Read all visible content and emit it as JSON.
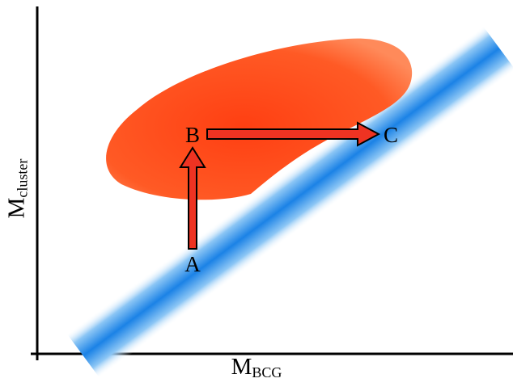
{
  "axes": {
    "x": {
      "main": "M",
      "sub": "BCG"
    },
    "y": {
      "main": "M",
      "sub": "cluster"
    }
  },
  "points": {
    "a": "A",
    "b": "B",
    "c": "C"
  },
  "colors": {
    "blob_core": "#ff4a1c",
    "blob_edge": "#ff8a5a",
    "band_core": "#1b82e6",
    "band_edge": "#e6f3ff",
    "arrow_fill": "#ee3322",
    "arrow_stroke": "#000000",
    "axis": "#000000"
  }
}
